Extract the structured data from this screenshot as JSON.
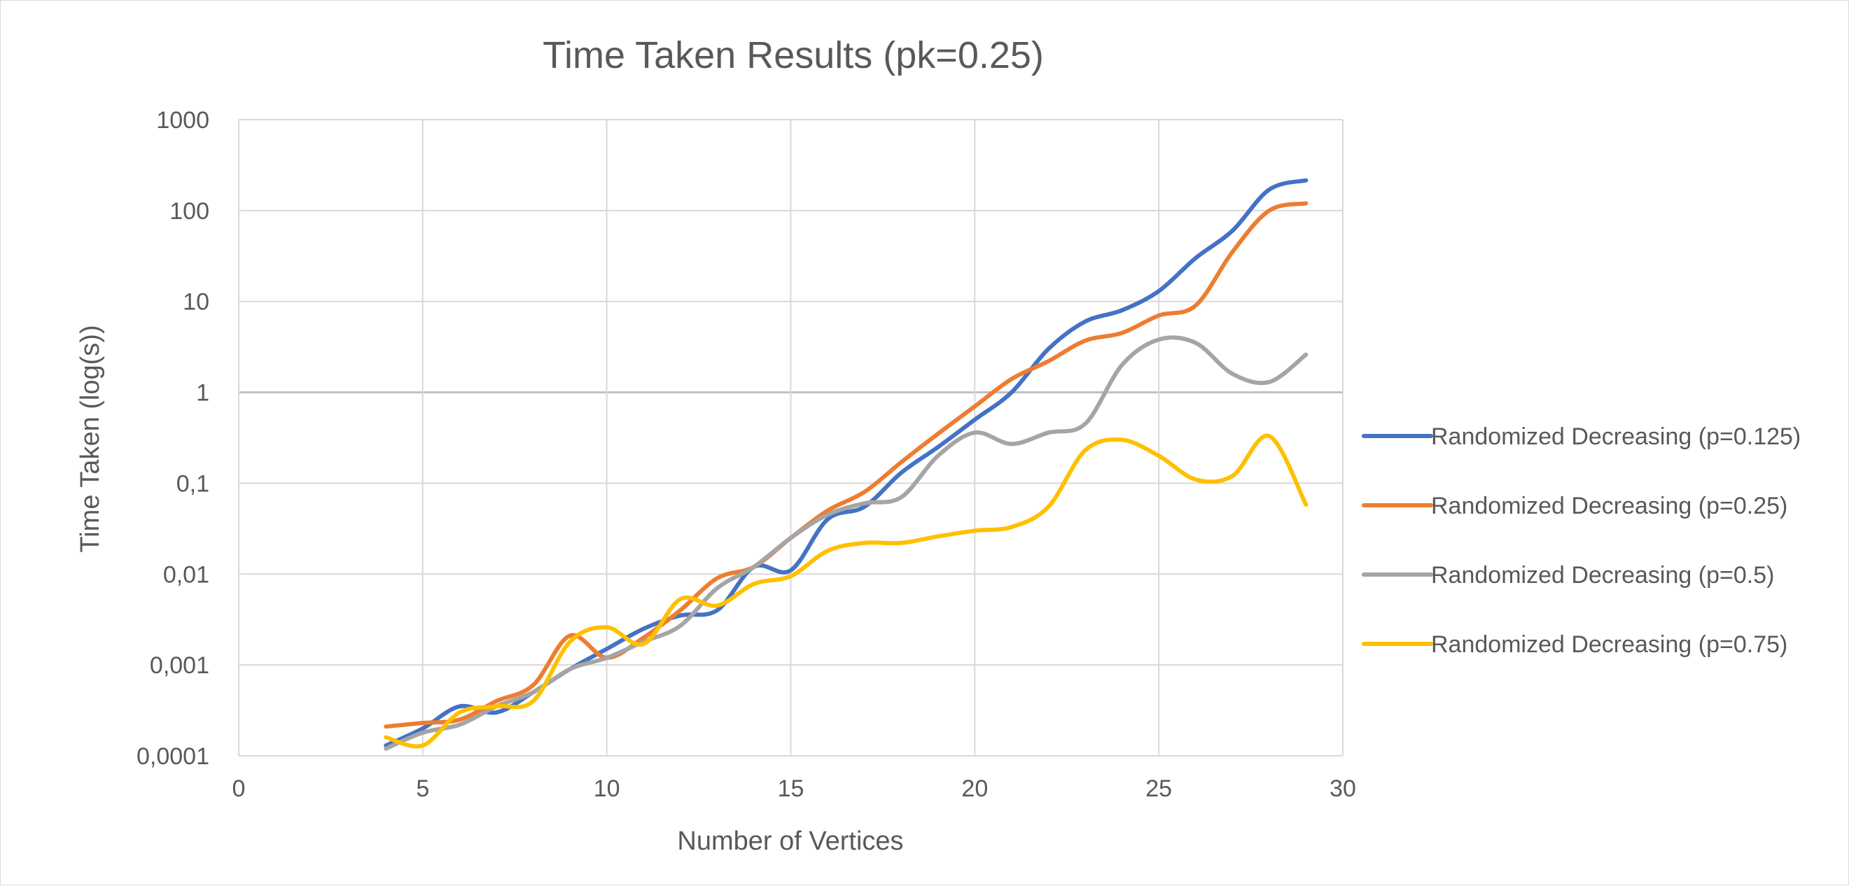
{
  "chart_data": {
    "type": "line",
    "title": "Time Taken Results (pk=0.25)",
    "xlabel": "Number of Vertices",
    "ylabel": "Time Taken (log(s))",
    "xlim": [
      0,
      30
    ],
    "ylim": [
      0.0001,
      1000
    ],
    "yscale": "log",
    "grid": true,
    "legend_position": "right",
    "x_ticks": [
      "0",
      "5",
      "10",
      "15",
      "20",
      "25",
      "30"
    ],
    "y_ticks": [
      "0,0001",
      "0,001",
      "0,01",
      "0,1",
      "1",
      "10",
      "100",
      "1000"
    ],
    "x": [
      4,
      5,
      6,
      7,
      8,
      9,
      10,
      11,
      12,
      13,
      14,
      15,
      16,
      17,
      18,
      19,
      20,
      21,
      22,
      23,
      24,
      25,
      26,
      27,
      28,
      29
    ],
    "series": [
      {
        "name": "Randomized Decreasing (p=0.125)",
        "color": "#4472C4",
        "values": [
          0.00013,
          0.0002,
          0.00035,
          0.0003,
          0.0005,
          0.0009,
          0.0015,
          0.0025,
          0.0035,
          0.004,
          0.012,
          0.011,
          0.04,
          0.055,
          0.13,
          0.25,
          0.5,
          1.0,
          3.0,
          6.0,
          8.0,
          13.0,
          30.0,
          60.0,
          170.0,
          215.0
        ]
      },
      {
        "name": "Randomized Decreasing (p=0.25)",
        "color": "#ED7D31",
        "values": [
          0.00021,
          0.00023,
          0.00025,
          0.0004,
          0.0006,
          0.0021,
          0.0012,
          0.002,
          0.004,
          0.009,
          0.012,
          0.025,
          0.05,
          0.08,
          0.17,
          0.35,
          0.7,
          1.4,
          2.2,
          3.7,
          4.5,
          7.0,
          9.0,
          35.0,
          100.0,
          120.0
        ]
      },
      {
        "name": "Randomized Decreasing (p=0.5)",
        "color": "#A5A5A5",
        "values": [
          0.00012,
          0.00018,
          0.00022,
          0.00035,
          0.0005,
          0.0009,
          0.0012,
          0.0018,
          0.0027,
          0.007,
          0.012,
          0.025,
          0.045,
          0.06,
          0.07,
          0.2,
          0.36,
          0.27,
          0.36,
          0.45,
          2.0,
          3.8,
          3.5,
          1.6,
          1.3,
          2.6
        ]
      },
      {
        "name": "Randomized Decreasing (p=0.75)",
        "color": "#FFC000",
        "values": [
          0.00016,
          0.00013,
          0.0003,
          0.00035,
          0.0004,
          0.0018,
          0.0026,
          0.0017,
          0.0053,
          0.0045,
          0.0078,
          0.0095,
          0.018,
          0.022,
          0.022,
          0.026,
          0.03,
          0.033,
          0.055,
          0.23,
          0.3,
          0.2,
          0.11,
          0.12,
          0.33,
          0.058
        ]
      }
    ]
  }
}
